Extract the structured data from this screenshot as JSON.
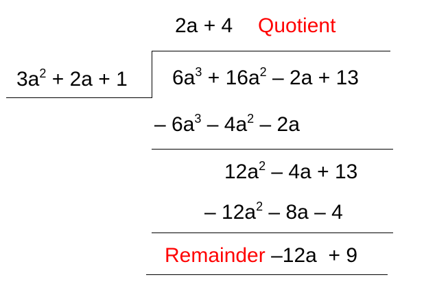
{
  "quotient": {
    "expr": "2a + 4",
    "label": "Quotient"
  },
  "divisor": {
    "base1": "3a",
    "exp1": "2",
    "rest": " + 2a + 1"
  },
  "dividend": {
    "t1": "6a",
    "e1": "3",
    "t2": " + 16a",
    "e2": "2",
    "t3": " – 2a + 13"
  },
  "step1_subtract": {
    "t1": "– 6a",
    "e1": "3",
    "t2": " – 4a",
    "e2": "2",
    "t3": " – 2a"
  },
  "step1_result": {
    "t1": "12a",
    "e1": "2",
    "t2": " – 4a + 13"
  },
  "step2_subtract": {
    "t1": "– 12a",
    "e1": "2",
    "t2": " – 8a – 4"
  },
  "remainder": {
    "label": "Remainder",
    "expr": " –12a  + 9"
  },
  "colors": {
    "text": "#000000",
    "highlight": "#ff0000"
  }
}
